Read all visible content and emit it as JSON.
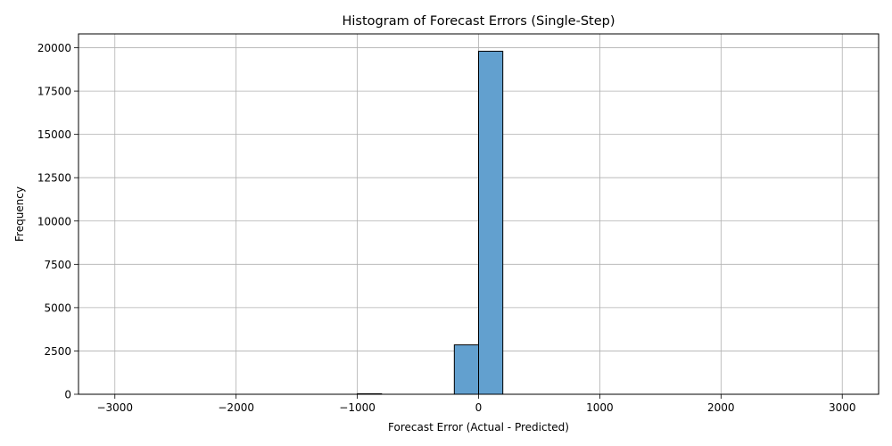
{
  "chart_data": {
    "type": "bar",
    "title": "Histogram of Forecast Errors (Single-Step)",
    "xlabel": "Forecast Error (Actual - Predicted)",
    "ylabel": "Frequency",
    "xlim": [
      -3300,
      3300
    ],
    "ylim": [
      0,
      20800
    ],
    "xticks": [
      -3000,
      -2000,
      -1000,
      0,
      1000,
      2000,
      3000
    ],
    "xtick_labels": [
      "−3000",
      "−2000",
      "−1000",
      "0",
      "1000",
      "2000",
      "3000"
    ],
    "yticks": [
      0,
      2500,
      5000,
      7500,
      10000,
      12500,
      15000,
      17500,
      20000
    ],
    "ytick_labels": [
      "0",
      "2500",
      "5000",
      "7500",
      "10000",
      "12500",
      "15000",
      "17500",
      "20000"
    ],
    "grid": true,
    "bins": [
      {
        "x0": -1000,
        "x1": -800,
        "value": 30
      },
      {
        "x0": -200,
        "x1": 0,
        "value": 2850
      },
      {
        "x0": 0,
        "x1": 200,
        "value": 19800
      }
    ],
    "colors": {
      "bar_fill": "#62a0cf",
      "bar_edge": "#000000",
      "grid": "#b0b0b0"
    }
  }
}
